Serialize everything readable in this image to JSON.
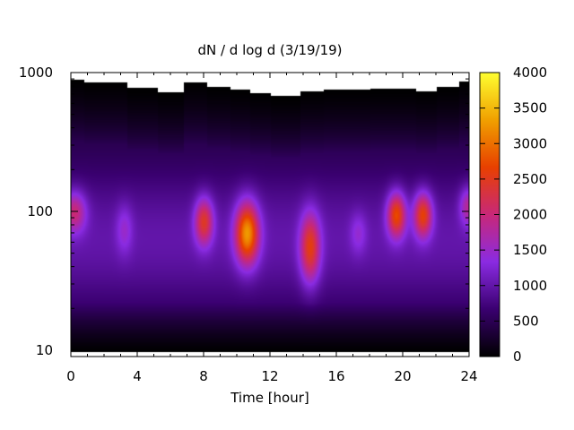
{
  "chart_data": {
    "type": "heatmap",
    "title": "dN / d log d (3/19/19)",
    "xlabel": "Time [hour]",
    "ylabel": "",
    "x_ticks": [
      "0",
      "4",
      "8",
      "12",
      "16",
      "20",
      "24"
    ],
    "x_tick_values": [
      0,
      4,
      8,
      12,
      16,
      20,
      24
    ],
    "xlim": [
      0,
      24
    ],
    "y_scale": "log",
    "ylim": [
      9,
      1000
    ],
    "y_ticks": [
      "10",
      "100",
      "1000"
    ],
    "y_tick_values": [
      10,
      100,
      1000
    ],
    "colorbar": {
      "range": [
        0,
        4000
      ],
      "ticks": [
        "0",
        "500",
        "1000",
        "1500",
        "2000",
        "2500",
        "3000",
        "3500",
        "4000"
      ],
      "tick_values": [
        0,
        500,
        1000,
        1500,
        2000,
        2500,
        3000,
        3500,
        4000
      ],
      "palette": [
        "#000000",
        "#3a0070",
        "#8a2be2",
        "#c82878",
        "#e84000",
        "#f0a000",
        "#ffff30"
      ]
    },
    "background_level": 1000,
    "hotspots": [
      {
        "t": 0.2,
        "diameter": 100,
        "peak": 2100,
        "t_width": 0.7,
        "log_width": 0.15
      },
      {
        "t": 3.2,
        "diameter": 75,
        "peak": 1500,
        "t_width": 0.5,
        "log_width": 0.18
      },
      {
        "t": 8.0,
        "diameter": 85,
        "peak": 2500,
        "t_width": 0.55,
        "log_width": 0.17
      },
      {
        "t": 10.6,
        "diameter": 70,
        "peak": 3300,
        "t_width": 0.7,
        "log_width": 0.22
      },
      {
        "t": 14.4,
        "diameter": 55,
        "peak": 2600,
        "t_width": 0.6,
        "log_width": 0.25
      },
      {
        "t": 17.3,
        "diameter": 70,
        "peak": 1450,
        "t_width": 0.5,
        "log_width": 0.15
      },
      {
        "t": 19.6,
        "diameter": 95,
        "peak": 2800,
        "t_width": 0.55,
        "log_width": 0.16
      },
      {
        "t": 21.2,
        "diameter": 95,
        "peak": 2700,
        "t_width": 0.55,
        "log_width": 0.16
      },
      {
        "t": 23.9,
        "diameter": 110,
        "peak": 1900,
        "t_width": 0.5,
        "log_width": 0.14
      }
    ],
    "upper_cutoff": [
      {
        "t": 0,
        "diameter": 900
      },
      {
        "t": 0.8,
        "diameter": 860
      },
      {
        "t": 3.4,
        "diameter": 780
      },
      {
        "t": 5.2,
        "diameter": 730
      },
      {
        "t": 6.8,
        "diameter": 860
      },
      {
        "t": 8.2,
        "diameter": 800
      },
      {
        "t": 9.6,
        "diameter": 760
      },
      {
        "t": 10.8,
        "diameter": 720
      },
      {
        "t": 12.0,
        "diameter": 680
      },
      {
        "t": 13.8,
        "diameter": 740
      },
      {
        "t": 15.2,
        "diameter": 760
      },
      {
        "t": 18.0,
        "diameter": 770
      },
      {
        "t": 19.2,
        "diameter": 770
      },
      {
        "t": 20.8,
        "diameter": 740
      },
      {
        "t": 22.0,
        "diameter": 790
      },
      {
        "t": 23.4,
        "diameter": 870
      },
      {
        "t": 24,
        "diameter": 880
      }
    ],
    "lower_cutoff_diameter": 9.8
  }
}
